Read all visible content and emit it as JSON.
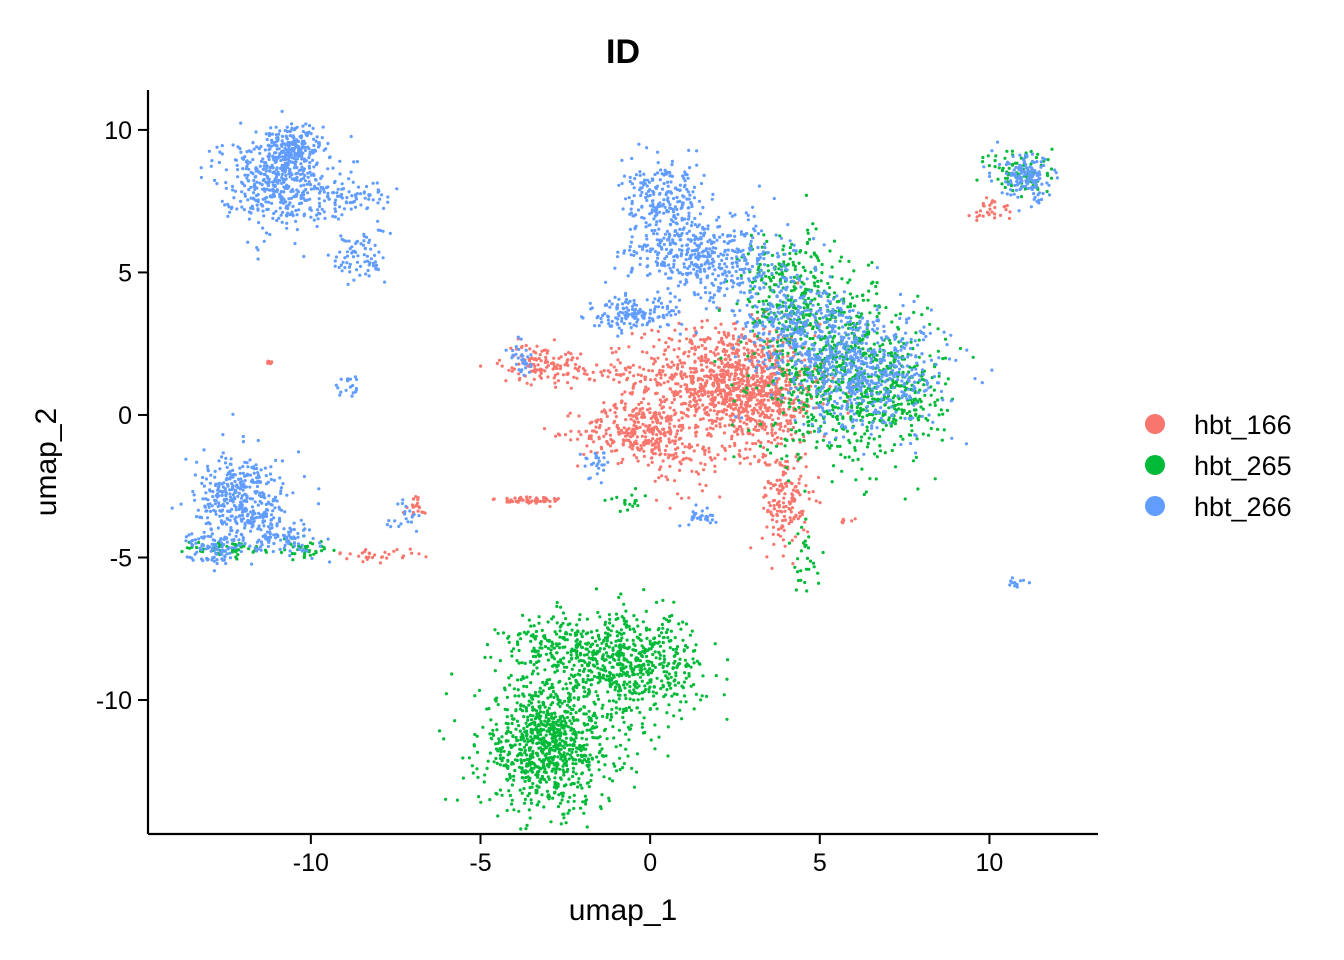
{
  "chart_data": {
    "type": "scatter",
    "title": "ID",
    "xlabel": "umap_1",
    "ylabel": "umap_2",
    "xlim": [
      -14.8,
      13.2
    ],
    "ylim": [
      -14.7,
      11.4
    ],
    "x_ticks": [
      -10,
      -5,
      0,
      5,
      10
    ],
    "x_tick_labels": [
      "-10",
      "-5",
      "0",
      "5",
      "10"
    ],
    "y_ticks": [
      -10,
      -5,
      0,
      5,
      10
    ],
    "y_tick_labels": [
      "-10",
      "-5",
      "0",
      "5",
      "10"
    ],
    "grid": false,
    "legend_position": "right",
    "series": [
      {
        "name": "hbt_166",
        "color": "#F8766D",
        "clusters": [
          {
            "cx": 2.2,
            "cy": 1.2,
            "sx": 1.3,
            "sy": 1.0,
            "n": 900
          },
          {
            "cx": -0.3,
            "cy": -0.6,
            "sx": 0.9,
            "sy": 0.5,
            "n": 300
          },
          {
            "cx": 3.3,
            "cy": 0.4,
            "sx": 0.8,
            "sy": 0.9,
            "n": 300
          },
          {
            "cx": 4.0,
            "cy": -3.0,
            "sx": 0.35,
            "sy": 0.9,
            "n": 160
          },
          {
            "cx": -3.2,
            "cy": 1.8,
            "sx": 0.6,
            "sy": 0.35,
            "n": 120
          },
          {
            "cx": -1.0,
            "cy": 1.5,
            "sx": 0.6,
            "sy": 0.15,
            "n": 40
          },
          {
            "cx": -3.6,
            "cy": -3.0,
            "sx": 0.5,
            "sy": 0.08,
            "n": 60
          },
          {
            "cx": 1.3,
            "cy": -1.7,
            "sx": 0.6,
            "sy": 0.6,
            "n": 60
          },
          {
            "cx": -11.2,
            "cy": 1.85,
            "sx": 0.05,
            "sy": 0.05,
            "n": 8
          },
          {
            "cx": 10.1,
            "cy": 7.2,
            "sx": 0.3,
            "sy": 0.25,
            "n": 30
          },
          {
            "cx": -8.0,
            "cy": -4.9,
            "sx": 0.6,
            "sy": 0.1,
            "n": 30
          },
          {
            "cx": -6.9,
            "cy": -3.2,
            "sx": 0.2,
            "sy": 0.2,
            "n": 20
          },
          {
            "cx": 5.8,
            "cy": -3.7,
            "sx": 0.1,
            "sy": 0.05,
            "n": 6
          }
        ]
      },
      {
        "name": "hbt_265",
        "color": "#00BA38",
        "clusters": [
          {
            "cx": -3.0,
            "cy": -11.6,
            "sx": 1.0,
            "sy": 1.1,
            "n": 900
          },
          {
            "cx": -0.6,
            "cy": -8.8,
            "sx": 1.1,
            "sy": 0.9,
            "n": 600
          },
          {
            "cx": -2.6,
            "cy": -8.2,
            "sx": 0.9,
            "sy": 0.6,
            "n": 200
          },
          {
            "cx": 5.6,
            "cy": 1.5,
            "sx": 1.2,
            "sy": 1.5,
            "n": 700
          },
          {
            "cx": 4.1,
            "cy": 4.4,
            "sx": 0.7,
            "sy": 1.0,
            "n": 250
          },
          {
            "cx": 7.3,
            "cy": 0.7,
            "sx": 0.7,
            "sy": 0.9,
            "n": 200
          },
          {
            "cx": 11.0,
            "cy": 8.5,
            "sx": 0.5,
            "sy": 0.5,
            "n": 80
          },
          {
            "cx": -12.5,
            "cy": -4.7,
            "sx": 0.6,
            "sy": 0.15,
            "n": 50
          },
          {
            "cx": -10.2,
            "cy": -4.7,
            "sx": 0.4,
            "sy": 0.2,
            "n": 40
          },
          {
            "cx": 4.6,
            "cy": -5.0,
            "sx": 0.2,
            "sy": 0.6,
            "n": 30
          },
          {
            "cx": -0.6,
            "cy": -3.0,
            "sx": 0.3,
            "sy": 0.2,
            "n": 20
          }
        ]
      },
      {
        "name": "hbt_266",
        "color": "#619CFF",
        "clusters": [
          {
            "cx": -11.0,
            "cy": 8.3,
            "sx": 0.8,
            "sy": 0.8,
            "n": 500
          },
          {
            "cx": -10.5,
            "cy": 9.4,
            "sx": 0.4,
            "sy": 0.4,
            "n": 150
          },
          {
            "cx": -9.1,
            "cy": 7.6,
            "sx": 0.8,
            "sy": 0.3,
            "n": 80
          },
          {
            "cx": -8.6,
            "cy": 5.6,
            "sx": 0.4,
            "sy": 0.5,
            "n": 80
          },
          {
            "cx": -12.0,
            "cy": -3.0,
            "sx": 0.7,
            "sy": 0.8,
            "n": 400
          },
          {
            "cx": -12.8,
            "cy": -4.6,
            "sx": 0.4,
            "sy": 0.3,
            "n": 100
          },
          {
            "cx": -10.8,
            "cy": -4.3,
            "sx": 0.5,
            "sy": 0.3,
            "n": 80
          },
          {
            "cx": 0.4,
            "cy": 7.6,
            "sx": 0.6,
            "sy": 0.6,
            "n": 200
          },
          {
            "cx": 0.8,
            "cy": 5.8,
            "sx": 0.8,
            "sy": 0.6,
            "n": 200
          },
          {
            "cx": 2.3,
            "cy": 5.5,
            "sx": 1.0,
            "sy": 0.8,
            "n": 300
          },
          {
            "cx": 6.4,
            "cy": 1.5,
            "sx": 1.2,
            "sy": 1.0,
            "n": 600
          },
          {
            "cx": 4.2,
            "cy": 3.2,
            "sx": 0.9,
            "sy": 0.8,
            "n": 300
          },
          {
            "cx": -0.5,
            "cy": 3.5,
            "sx": 0.7,
            "sy": 0.3,
            "n": 150
          },
          {
            "cx": 11.1,
            "cy": 8.3,
            "sx": 0.4,
            "sy": 0.4,
            "n": 150
          },
          {
            "cx": -8.8,
            "cy": 1.0,
            "sx": 0.2,
            "sy": 0.2,
            "n": 20
          },
          {
            "cx": 1.6,
            "cy": -3.6,
            "sx": 0.25,
            "sy": 0.15,
            "n": 30
          },
          {
            "cx": -3.8,
            "cy": 1.9,
            "sx": 0.2,
            "sy": 0.3,
            "n": 30
          },
          {
            "cx": -7.2,
            "cy": -3.6,
            "sx": 0.3,
            "sy": 0.3,
            "n": 20
          },
          {
            "cx": 10.9,
            "cy": -5.9,
            "sx": 0.2,
            "sy": 0.1,
            "n": 12
          },
          {
            "cx": -1.6,
            "cy": -1.9,
            "sx": 0.2,
            "sy": 0.3,
            "n": 25
          }
        ]
      }
    ]
  }
}
